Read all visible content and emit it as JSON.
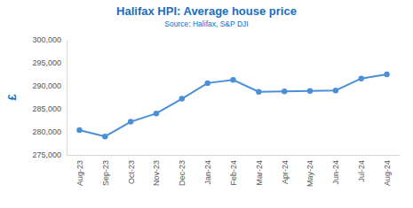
{
  "chart_data": {
    "type": "line",
    "title": "Halifax HPI: Average house price",
    "subtitle": "Source: Halifax, S&P DJI",
    "ylabel": "£",
    "categories": [
      "Aug-23",
      "Sep-23",
      "Oct-23",
      "Nov-23",
      "Dec-23",
      "Jan-24",
      "Feb-24",
      "Mar-24",
      "Apr-24",
      "May-24",
      "Jun-24",
      "Jul-24",
      "Aug-24"
    ],
    "values": [
      280400,
      279000,
      282200,
      284000,
      287200,
      290600,
      291300,
      288700,
      288800,
      288900,
      289000,
      291600,
      292500
    ],
    "color": "#4a8fd8",
    "marker": "circle",
    "ylim": [
      275000,
      300000
    ],
    "yticks": [
      {
        "value": 275000,
        "label": "275,000"
      },
      {
        "value": 280000,
        "label": "280,000"
      },
      {
        "value": 285000,
        "label": "285,000"
      },
      {
        "value": 290000,
        "label": "290,000"
      },
      {
        "value": 295000,
        "label": "295,000"
      },
      {
        "value": 300000,
        "label": "300,000"
      }
    ],
    "grid": false
  }
}
